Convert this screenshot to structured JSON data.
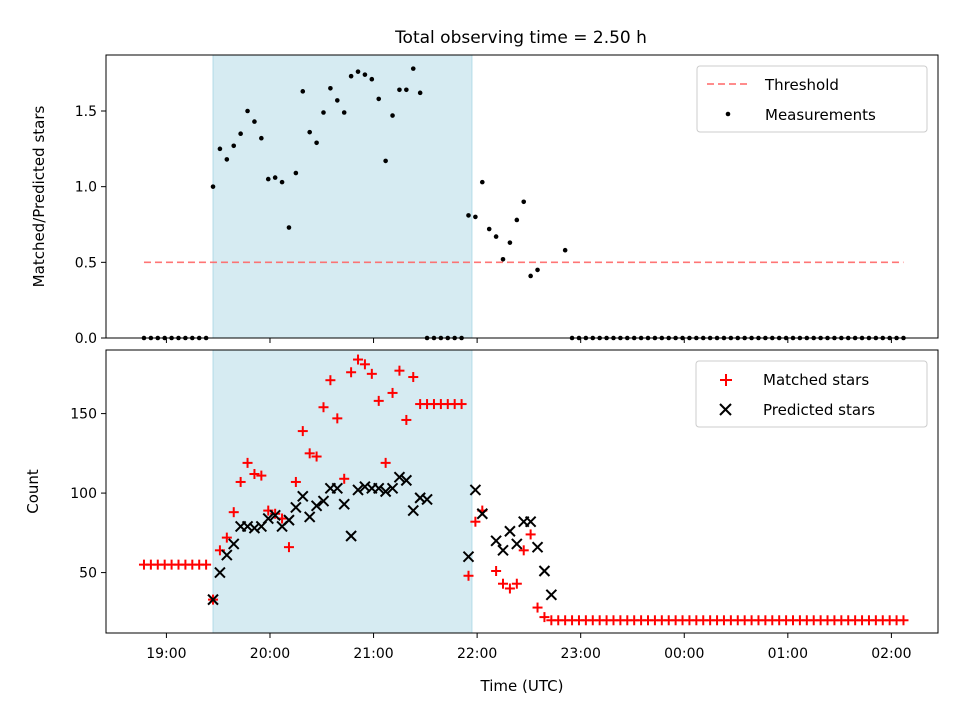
{
  "figure_title": "Total observing time = 2.50 h",
  "chart_data": [
    {
      "type": "scatter",
      "panel": "top",
      "ylabel": "Matched/Predicted stars",
      "xlabel": "",
      "ylim": [
        0.0,
        1.87
      ],
      "yticks": [
        0.0,
        0.5,
        1.0,
        1.5
      ],
      "ytick_labels": [
        "0.0",
        "0.5",
        "1.0",
        "1.5"
      ],
      "highlight_span": {
        "start": "19:27",
        "end": "21:57",
        "color": "#add8e6"
      },
      "legend_position": "upper right",
      "threshold": {
        "name": "Threshold",
        "value": 0.5,
        "from": "18:47",
        "to": "02:07",
        "color": "#ff6666",
        "style": "dashed"
      },
      "series": [
        {
          "name": "Measurements",
          "color": "#000000",
          "marker": "dot",
          "x": [
            "18:47",
            "18:51",
            "18:55",
            "18:59",
            "19:03",
            "19:07",
            "19:11",
            "19:15",
            "19:19",
            "19:23",
            "19:27",
            "19:31",
            "19:35",
            "19:39",
            "19:43",
            "19:47",
            "19:51",
            "19:55",
            "19:59",
            "20:03",
            "20:07",
            "20:11",
            "20:15",
            "20:19",
            "20:23",
            "20:27",
            "20:31",
            "20:35",
            "20:39",
            "20:43",
            "20:47",
            "20:51",
            "20:55",
            "20:59",
            "21:03",
            "21:07",
            "21:11",
            "21:15",
            "21:19",
            "21:23",
            "21:27",
            "21:31",
            "21:35",
            "21:39",
            "21:43",
            "21:47",
            "21:51",
            "21:55",
            "21:59",
            "22:03",
            "22:07",
            "22:11",
            "22:15",
            "22:19",
            "22:23",
            "22:27",
            "22:31",
            "22:35",
            "22:51",
            "22:55",
            "22:59",
            "23:03",
            "23:07",
            "23:11",
            "23:15",
            "23:19",
            "23:23",
            "23:27",
            "23:31",
            "23:35",
            "23:39",
            "23:43",
            "23:47",
            "23:51",
            "23:55",
            "23:59",
            "00:03",
            "00:07",
            "00:11",
            "00:15",
            "00:19",
            "00:23",
            "00:27",
            "00:31",
            "00:35",
            "00:39",
            "00:43",
            "00:47",
            "00:51",
            "00:55",
            "00:59",
            "01:03",
            "01:07",
            "01:11",
            "01:15",
            "01:19",
            "01:23",
            "01:27",
            "01:31",
            "01:35",
            "01:39",
            "01:43",
            "01:47",
            "01:51",
            "01:55",
            "01:59",
            "02:03",
            "02:07"
          ],
          "y": [
            0.0,
            0.0,
            0.0,
            0.0,
            0.0,
            0.0,
            0.0,
            0.0,
            0.0,
            0.0,
            1.0,
            1.25,
            1.18,
            1.27,
            1.35,
            1.5,
            1.43,
            1.32,
            1.05,
            1.06,
            1.03,
            0.73,
            1.09,
            1.63,
            1.36,
            1.29,
            1.49,
            1.65,
            1.57,
            1.49,
            1.73,
            1.76,
            1.74,
            1.71,
            1.58,
            1.17,
            1.47,
            1.64,
            1.64,
            1.78,
            1.62,
            0.0,
            0.0,
            0.0,
            0.0,
            0.0,
            0.0,
            0.81,
            0.8,
            1.03,
            0.72,
            0.67,
            0.52,
            0.63,
            0.78,
            0.9,
            0.41,
            0.45,
            0.58,
            0.0,
            0.0,
            0.0,
            0.0,
            0.0,
            0.0,
            0.0,
            0.0,
            0.0,
            0.0,
            0.0,
            0.0,
            0.0,
            0.0,
            0.0,
            0.0,
            0.0,
            0.0,
            0.0,
            0.0,
            0.0,
            0.0,
            0.0,
            0.0,
            0.0,
            0.0,
            0.0,
            0.0,
            0.0,
            0.0,
            0.0,
            0.0,
            0.0,
            0.0,
            0.0,
            0.0,
            0.0,
            0.0,
            0.0,
            0.0,
            0.0,
            0.0,
            0.0,
            0.0,
            0.0,
            0.0,
            0.0,
            0.0,
            0.0
          ]
        }
      ]
    },
    {
      "type": "scatter",
      "panel": "bottom",
      "xlabel": "Time (UTC)",
      "ylabel": "Count",
      "ylim": [
        12,
        190
      ],
      "yticks": [
        50,
        100,
        150
      ],
      "ytick_labels": [
        "50",
        "100",
        "150"
      ],
      "xlim": [
        "18:25",
        "02:27"
      ],
      "xticks": [
        "19:00",
        "20:00",
        "21:00",
        "22:00",
        "23:00",
        "00:00",
        "01:00",
        "02:00"
      ],
      "xtick_labels": [
        "19:00",
        "20:00",
        "21:00",
        "22:00",
        "23:00",
        "00:00",
        "01:00",
        "02:00"
      ],
      "highlight_span": {
        "start": "19:27",
        "end": "21:57",
        "color": "#add8e6"
      },
      "legend_position": "upper right",
      "series": [
        {
          "name": "Matched stars",
          "color": "#ff0000",
          "marker": "plus",
          "points": [
            [
              "18:47",
              55
            ],
            [
              "18:51",
              55
            ],
            [
              "18:55",
              55
            ],
            [
              "18:59",
              55
            ],
            [
              "19:03",
              55
            ],
            [
              "19:07",
              55
            ],
            [
              "19:11",
              55
            ],
            [
              "19:15",
              55
            ],
            [
              "19:19",
              55
            ],
            [
              "19:23",
              55
            ],
            [
              "19:27",
              33
            ],
            [
              "19:31",
              64
            ],
            [
              "19:35",
              72
            ],
            [
              "19:39",
              88
            ],
            [
              "19:43",
              107
            ],
            [
              "19:47",
              119
            ],
            [
              "19:51",
              112
            ],
            [
              "19:55",
              111
            ],
            [
              "19:59",
              89
            ],
            [
              "20:03",
              87
            ],
            [
              "20:07",
              84
            ],
            [
              "20:11",
              66
            ],
            [
              "20:15",
              107
            ],
            [
              "20:19",
              139
            ],
            [
              "20:23",
              125
            ],
            [
              "20:27",
              123
            ],
            [
              "20:31",
              154
            ],
            [
              "20:35",
              171
            ],
            [
              "20:39",
              147
            ],
            [
              "20:43",
              109
            ],
            [
              "20:47",
              176
            ],
            [
              "20:51",
              184
            ],
            [
              "20:55",
              181
            ],
            [
              "20:59",
              175
            ],
            [
              "21:03",
              158
            ],
            [
              "21:07",
              119
            ],
            [
              "21:11",
              163
            ],
            [
              "21:15",
              177
            ],
            [
              "21:19",
              146
            ],
            [
              "21:23",
              173
            ],
            [
              "21:27",
              156
            ],
            [
              "21:31",
              156
            ],
            [
              "21:35",
              156
            ],
            [
              "21:39",
              156
            ],
            [
              "21:43",
              156
            ],
            [
              "21:47",
              156
            ],
            [
              "21:51",
              156
            ],
            [
              "21:55",
              48
            ],
            [
              "21:59",
              82
            ],
            [
              "22:03",
              89
            ],
            [
              "22:11",
              51
            ],
            [
              "22:15",
              43
            ],
            [
              "22:19",
              40
            ],
            [
              "22:23",
              43
            ],
            [
              "22:27",
              64
            ],
            [
              "22:31",
              74
            ],
            [
              "22:35",
              28
            ],
            [
              "22:39",
              22
            ],
            [
              "22:43",
              20
            ],
            [
              "22:47",
              20
            ],
            [
              "22:51",
              20
            ],
            [
              "22:55",
              20
            ],
            [
              "22:59",
              20
            ],
            [
              "23:03",
              20
            ],
            [
              "23:07",
              20
            ],
            [
              "23:11",
              20
            ],
            [
              "23:15",
              20
            ],
            [
              "23:19",
              20
            ],
            [
              "23:23",
              20
            ],
            [
              "23:27",
              20
            ],
            [
              "23:31",
              20
            ],
            [
              "23:35",
              20
            ],
            [
              "23:39",
              20
            ],
            [
              "23:43",
              20
            ],
            [
              "23:47",
              20
            ],
            [
              "23:51",
              20
            ],
            [
              "23:55",
              20
            ],
            [
              "23:59",
              20
            ],
            [
              "00:03",
              20
            ],
            [
              "00:07",
              20
            ],
            [
              "00:11",
              20
            ],
            [
              "00:15",
              20
            ],
            [
              "00:19",
              20
            ],
            [
              "00:23",
              20
            ],
            [
              "00:27",
              20
            ],
            [
              "00:31",
              20
            ],
            [
              "00:35",
              20
            ],
            [
              "00:39",
              20
            ],
            [
              "00:43",
              20
            ],
            [
              "00:47",
              20
            ],
            [
              "00:51",
              20
            ],
            [
              "00:55",
              20
            ],
            [
              "00:59",
              20
            ],
            [
              "01:03",
              20
            ],
            [
              "01:07",
              20
            ],
            [
              "01:11",
              20
            ],
            [
              "01:15",
              20
            ],
            [
              "01:19",
              20
            ],
            [
              "01:23",
              20
            ],
            [
              "01:27",
              20
            ],
            [
              "01:31",
              20
            ],
            [
              "01:35",
              20
            ],
            [
              "01:39",
              20
            ],
            [
              "01:43",
              20
            ],
            [
              "01:47",
              20
            ],
            [
              "01:51",
              20
            ],
            [
              "01:55",
              20
            ],
            [
              "01:59",
              20
            ],
            [
              "02:03",
              20
            ],
            [
              "02:07",
              20
            ]
          ]
        },
        {
          "name": "Predicted stars",
          "color": "#000000",
          "marker": "x",
          "points": [
            [
              "19:27",
              33
            ],
            [
              "19:31",
              50
            ],
            [
              "19:35",
              61
            ],
            [
              "19:39",
              68
            ],
            [
              "19:43",
              79
            ],
            [
              "19:47",
              79
            ],
            [
              "19:51",
              78
            ],
            [
              "19:55",
              79
            ],
            [
              "19:59",
              84
            ],
            [
              "20:03",
              86
            ],
            [
              "20:07",
              79
            ],
            [
              "20:11",
              83
            ],
            [
              "20:15",
              91
            ],
            [
              "20:19",
              98
            ],
            [
              "20:23",
              85
            ],
            [
              "20:27",
              92
            ],
            [
              "20:31",
              95
            ],
            [
              "20:35",
              103
            ],
            [
              "20:39",
              103
            ],
            [
              "20:43",
              93
            ],
            [
              "20:47",
              73
            ],
            [
              "20:51",
              102
            ],
            [
              "20:55",
              104
            ],
            [
              "20:59",
              103
            ],
            [
              "21:03",
              103
            ],
            [
              "21:07",
              101
            ],
            [
              "21:11",
              103
            ],
            [
              "21:15",
              110
            ],
            [
              "21:19",
              108
            ],
            [
              "21:23",
              89
            ],
            [
              "21:27",
              97
            ],
            [
              "21:31",
              96
            ],
            [
              "21:55",
              60
            ],
            [
              "21:59",
              102
            ],
            [
              "22:03",
              87
            ],
            [
              "22:11",
              70
            ],
            [
              "22:15",
              64
            ],
            [
              "22:19",
              76
            ],
            [
              "22:23",
              68
            ],
            [
              "22:27",
              82
            ],
            [
              "22:31",
              82
            ],
            [
              "22:35",
              66
            ],
            [
              "22:39",
              51
            ],
            [
              "22:43",
              36
            ]
          ]
        }
      ]
    }
  ]
}
